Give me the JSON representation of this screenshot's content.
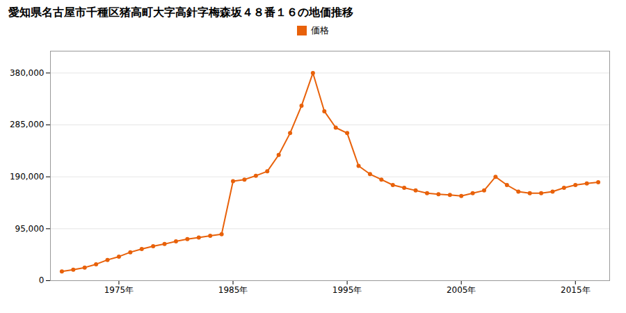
{
  "chart_data": {
    "type": "line",
    "title": "愛知県名古屋市千種区猪高町大字高針字梅森坂４８番１６の地価推移",
    "x": [
      1970,
      1971,
      1972,
      1973,
      1974,
      1975,
      1976,
      1977,
      1978,
      1979,
      1980,
      1981,
      1982,
      1983,
      1984,
      1985,
      1986,
      1987,
      1988,
      1989,
      1990,
      1991,
      1992,
      1993,
      1994,
      1995,
      1996,
      1997,
      1998,
      1999,
      2000,
      2001,
      2002,
      2003,
      2004,
      2005,
      2006,
      2007,
      2008,
      2009,
      2010,
      2011,
      2012,
      2013,
      2014,
      2015,
      2016,
      2017
    ],
    "series": [
      {
        "name": "価格",
        "color": "#E8610A",
        "marker": "circle",
        "values": [
          17000,
          20000,
          24000,
          30000,
          38000,
          44000,
          52000,
          58000,
          63000,
          67000,
          72000,
          76000,
          79000,
          82000,
          85000,
          182000,
          185000,
          192000,
          200000,
          230000,
          270000,
          320000,
          380000,
          310000,
          280000,
          270000,
          210000,
          195000,
          185000,
          175000,
          170000,
          165000,
          160000,
          158000,
          157000,
          155000,
          160000,
          165000,
          190000,
          175000,
          163000,
          160000,
          160000,
          163000,
          170000,
          175000,
          178000,
          180000
        ]
      }
    ],
    "xlim": [
      1969,
      2018
    ],
    "xticks": [
      {
        "value": 1975,
        "label": "1975年"
      },
      {
        "value": 1985,
        "label": "1985年"
      },
      {
        "value": 1995,
        "label": "1995年"
      },
      {
        "value": 2005,
        "label": "2005年"
      },
      {
        "value": 2015,
        "label": "2015年"
      }
    ],
    "ylim": [
      0,
      420000
    ],
    "yticks": [
      0,
      {
        "value": 95000,
        "label": "95,000"
      },
      {
        "value": 190000,
        "label": "190,000"
      },
      {
        "value": 285000,
        "label": "285,000"
      },
      {
        "value": 380000,
        "label": "380,000"
      }
    ],
    "grid": true,
    "legend": "top"
  }
}
